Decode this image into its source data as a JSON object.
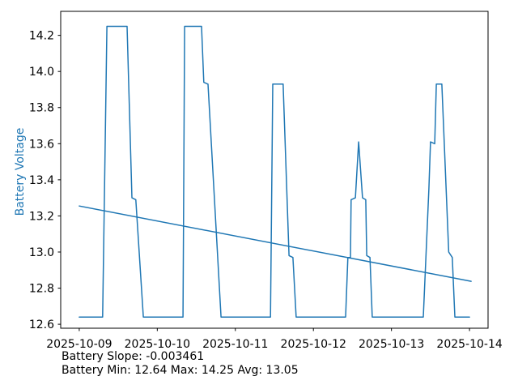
{
  "stats": {
    "slope_line": "Battery Slope: -0.003461",
    "minmax_line": "Battery Min: 12.64 Max: 14.25 Avg: 13.05"
  },
  "chart_data": {
    "type": "line",
    "title": "",
    "xlabel": "",
    "ylabel": "Battery Voltage",
    "ylabel_color": "#1f77b4",
    "line_color": "#1f77b4",
    "trend_color": "#1f77b4",
    "grid": false,
    "legend": "none",
    "x_unit": "hours since 2025-10-09 00:00",
    "x_tick_hours": [
      0,
      24,
      48,
      72,
      96,
      120
    ],
    "x_tick_labels": [
      "2025-10-09",
      "2025-10-10",
      "2025-10-11",
      "2025-10-12",
      "2025-10-13",
      "2025-10-14"
    ],
    "y_ticks": [
      12.6,
      12.8,
      13.0,
      13.2,
      13.4,
      13.6,
      13.8,
      14.0,
      14.2
    ],
    "xlim_hours": [
      -5.7,
      125.7
    ],
    "ylim": [
      12.578,
      14.333
    ],
    "series": [
      {
        "name": "battery_voltage",
        "points": [
          [
            0,
            12.64
          ],
          [
            7.2,
            12.64
          ],
          [
            8.5,
            14.25
          ],
          [
            14.7,
            14.25
          ],
          [
            16.2,
            13.3
          ],
          [
            17.4,
            13.29
          ],
          [
            19.7,
            12.64
          ],
          [
            31.9,
            12.64
          ],
          [
            32.4,
            14.25
          ],
          [
            37.6,
            14.25
          ],
          [
            38.3,
            13.94
          ],
          [
            39.6,
            13.93
          ],
          [
            43.6,
            12.64
          ],
          [
            58.8,
            12.64
          ],
          [
            59.5,
            13.93
          ],
          [
            62.7,
            13.93
          ],
          [
            64.5,
            12.98
          ],
          [
            65.7,
            12.97
          ],
          [
            66.7,
            12.64
          ],
          [
            81.9,
            12.64
          ],
          [
            82.6,
            12.97
          ],
          [
            83.4,
            12.97
          ],
          [
            83.6,
            13.29
          ],
          [
            84.9,
            13.3
          ],
          [
            85.9,
            13.61
          ],
          [
            87.1,
            13.3
          ],
          [
            88.1,
            13.29
          ],
          [
            88.4,
            12.98
          ],
          [
            89.4,
            12.97
          ],
          [
            90.1,
            12.64
          ],
          [
            105.8,
            12.64
          ],
          [
            107.5,
            13.35
          ],
          [
            108.0,
            13.61
          ],
          [
            109.3,
            13.6
          ],
          [
            109.8,
            13.93
          ],
          [
            111.5,
            13.93
          ],
          [
            113.6,
            13.0
          ],
          [
            114.7,
            12.97
          ],
          [
            115.5,
            12.64
          ],
          [
            120,
            12.64
          ]
        ]
      },
      {
        "name": "trend",
        "points": [
          [
            0,
            13.255
          ],
          [
            120.5,
            12.838
          ]
        ]
      }
    ],
    "stats_annotations": {
      "slope": -0.003461,
      "min": 12.64,
      "max": 14.25,
      "avg": 13.05
    }
  }
}
